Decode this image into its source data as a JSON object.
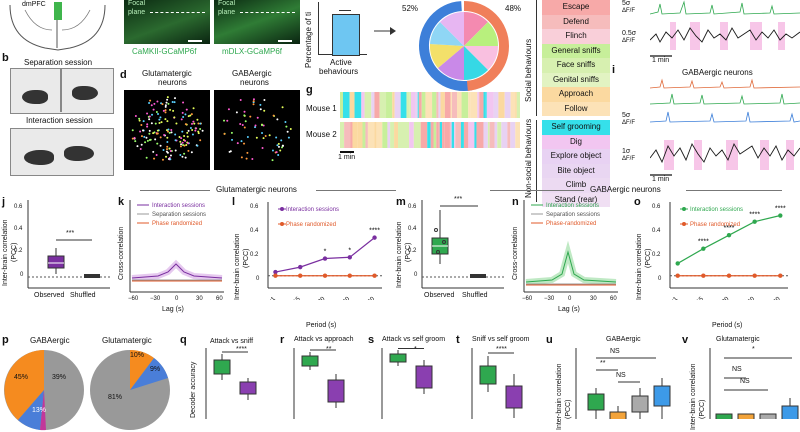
{
  "panel_labels": {
    "b": "b",
    "d": "d",
    "g": "g",
    "i": "i",
    "j": "j",
    "k": "k",
    "l": "l",
    "m": "m",
    "n": "n",
    "o": "o",
    "p": "p",
    "q": "q",
    "r": "r",
    "s": "s",
    "t": "t",
    "u": "u",
    "v": "v"
  },
  "brain": {
    "region": "dmPFC"
  },
  "micro": {
    "focal1": "Focal",
    "plane1": "plane",
    "focal2": "Focal",
    "plane2": "plane",
    "cap_left": "CaMKII-GCaMP6f",
    "cap_right": "mDLX-GCaMP6f"
  },
  "sessions": {
    "separation": "Separation session",
    "interaction": "Interaction session"
  },
  "neurons": {
    "glut": "Glutamatergic",
    "glut2": "neurons",
    "gaba": "GABAergic",
    "gaba2": "neurons"
  },
  "active_bar": {
    "ylabel": "Percentage of ti",
    "xlabel": "Active",
    "xlabel2": "behaviours",
    "value": 48
  },
  "donut": {
    "left_pct": "52%",
    "right_pct": "48%"
  },
  "raster": {
    "mouse1": "Mouse 1",
    "mouse2": "Mouse 2",
    "scale": "1 min"
  },
  "behaviours": {
    "social_title": "Social behaviours",
    "nonsocial_title": "Non-social behaviours",
    "social": [
      {
        "label": "Escape",
        "color": "#f7a9a8"
      },
      {
        "label": "Defend",
        "color": "#f6bcbc"
      },
      {
        "label": "Flinch",
        "color": "#f9cfd9"
      },
      {
        "label": "General sniffs",
        "color": "#c7ef9a"
      },
      {
        "label": "Face sniffs",
        "color": "#d7f0b0"
      },
      {
        "label": "Genital sniffs",
        "color": "#e2f3c2"
      },
      {
        "label": "Approach",
        "color": "#fbd9a0"
      },
      {
        "label": "Follow",
        "color": "#fce2b7"
      }
    ],
    "nonsocial": [
      {
        "label": "Self grooming",
        "color": "#35e0ea"
      },
      {
        "label": "Dig",
        "color": "#f2c6f1"
      },
      {
        "label": "Explore object",
        "color": "#e8d2f3"
      },
      {
        "label": "Bite object",
        "color": "#e9d6f2"
      },
      {
        "label": "Climb",
        "color": "#ecdaf2"
      },
      {
        "label": "Stand (rear)",
        "color": "#f0dff3"
      }
    ]
  },
  "traces": {
    "scale1": "5σ",
    "unit1": "ΔF/F",
    "scale2": "0.5σ",
    "unit2": "ΔF/F",
    "time": "1 min",
    "gaba_title": "GABAergic neurons",
    "scale3": "5σ",
    "unit3": "ΔF/F",
    "scale4": "1σ",
    "unit4": "ΔF/F",
    "time2": "1 min"
  },
  "sections": {
    "glut": "Glutamatergic neurons",
    "gaba": "GABAergic neurons"
  },
  "panel_j": {
    "ylabel": "Inter-brain correlation",
    "ylabel2": "(PCC)",
    "observed": "Observed",
    "shuffled": "Shuffled",
    "sig": "***",
    "yticks": [
      "0.6",
      "0.4",
      "0.2",
      "0"
    ]
  },
  "panel_k": {
    "ylabel": "Cross-correlation",
    "xlabel": "Lag (s)",
    "legend": [
      "Interaction sessions",
      "Separation sessions",
      "Phase randomized"
    ],
    "xticks": [
      "−60",
      "−30",
      "0",
      "30",
      "60"
    ]
  },
  "panel_l": {
    "ylabel": "Inter-brain correlation",
    "ylabel2": "(PCC)",
    "xlabel": "Period (s)",
    "legend": [
      "Interaction sessions",
      "Phase randomized"
    ],
    "xticks": [
      "<1",
      "1–15",
      "15–30",
      "30–60",
      ">60"
    ],
    "sigs": [
      "*",
      "*",
      "****"
    ],
    "yticks": [
      "0.6",
      "0.4",
      "0.2",
      "0"
    ],
    "chart_data": {
      "type": "line",
      "categories": [
        "<1",
        "1–15",
        "15–30",
        "30–60",
        ">60"
      ],
      "series": [
        {
          "name": "Interaction sessions",
          "values": [
            0.03,
            0.07,
            0.14,
            0.15,
            0.31
          ]
        },
        {
          "name": "Phase randomized",
          "values": [
            0,
            0,
            0,
            0,
            0
          ]
        }
      ],
      "xlabel": "Period (s)",
      "ylabel": "Inter-brain correlation (PCC)",
      "ylim": [
        -0.1,
        0.6
      ]
    }
  },
  "panel_m": {
    "ylabel": "Inter-brain correlation",
    "ylabel2": "(PCC)",
    "observed": "Observed",
    "shuffled": "Shuffled",
    "sig": "***",
    "yticks": [
      "0.6",
      "0.4",
      "0.2",
      "0"
    ]
  },
  "panel_n": {
    "ylabel": "Cross-correlation",
    "xlabel": "Lag (s)",
    "legend": [
      "Interaction sessions",
      "Separation sessions",
      "Phase-randomized"
    ],
    "xticks": [
      "−60",
      "−30",
      "0",
      "30",
      "60"
    ]
  },
  "panel_o": {
    "ylabel": "Inter-brain correlation",
    "ylabel2": "(PCC)",
    "xlabel": "Period (s)",
    "legend": [
      "Interaction sessions",
      "Phase randomized"
    ],
    "xticks": [
      "<1",
      "1–15",
      "15–30",
      "30–60",
      ">60"
    ],
    "sigs": [
      "****",
      "****",
      "****",
      "****"
    ],
    "yticks": [
      "0.6",
      "0.4",
      "0.2",
      "0"
    ],
    "chart_data": {
      "type": "line",
      "categories": [
        "<1",
        "1–15",
        "15–30",
        "30–60",
        ">60"
      ],
      "series": [
        {
          "name": "Interaction sessions",
          "values": [
            0.1,
            0.22,
            0.33,
            0.44,
            0.49
          ]
        },
        {
          "name": "Phase randomized",
          "values": [
            0,
            0,
            0,
            0,
            0
          ]
        }
      ],
      "xlabel": "Period (s)",
      "ylabel": "Inter-brain correlation (PCC)",
      "ylim": [
        -0.1,
        0.6
      ]
    }
  },
  "panel_p": {
    "gaba": "GABAergic",
    "glut": "Glutamatergic",
    "g45": "45%",
    "g39": "39%",
    "g13": "13%",
    "u10": "10%",
    "u9": "9%",
    "u81": "81%"
  },
  "panel_q": {
    "title": "Attack vs sniff",
    "sig": "****",
    "ylabel": "Decoder accuracy"
  },
  "panel_r": {
    "title": "Attack vs approach",
    "sig": "**"
  },
  "panel_s": {
    "title": "Attack vs self groom",
    "sig": "*"
  },
  "panel_t": {
    "title": "Sniff vs self groom",
    "sig": "****"
  },
  "panel_u": {
    "title": "GABAergic",
    "ylabel": "Inter-brain correlation",
    "ylabel2": "(PCC)",
    "ns": "NS",
    "sig2": "**",
    "sig3": "NS"
  },
  "panel_v": {
    "title": "Glutamatergic",
    "ylabel": "Inter-brain correlation",
    "ylabel2": "(PCC)",
    "ns1": "NS",
    "ns2": "NS",
    "sig": "*"
  }
}
